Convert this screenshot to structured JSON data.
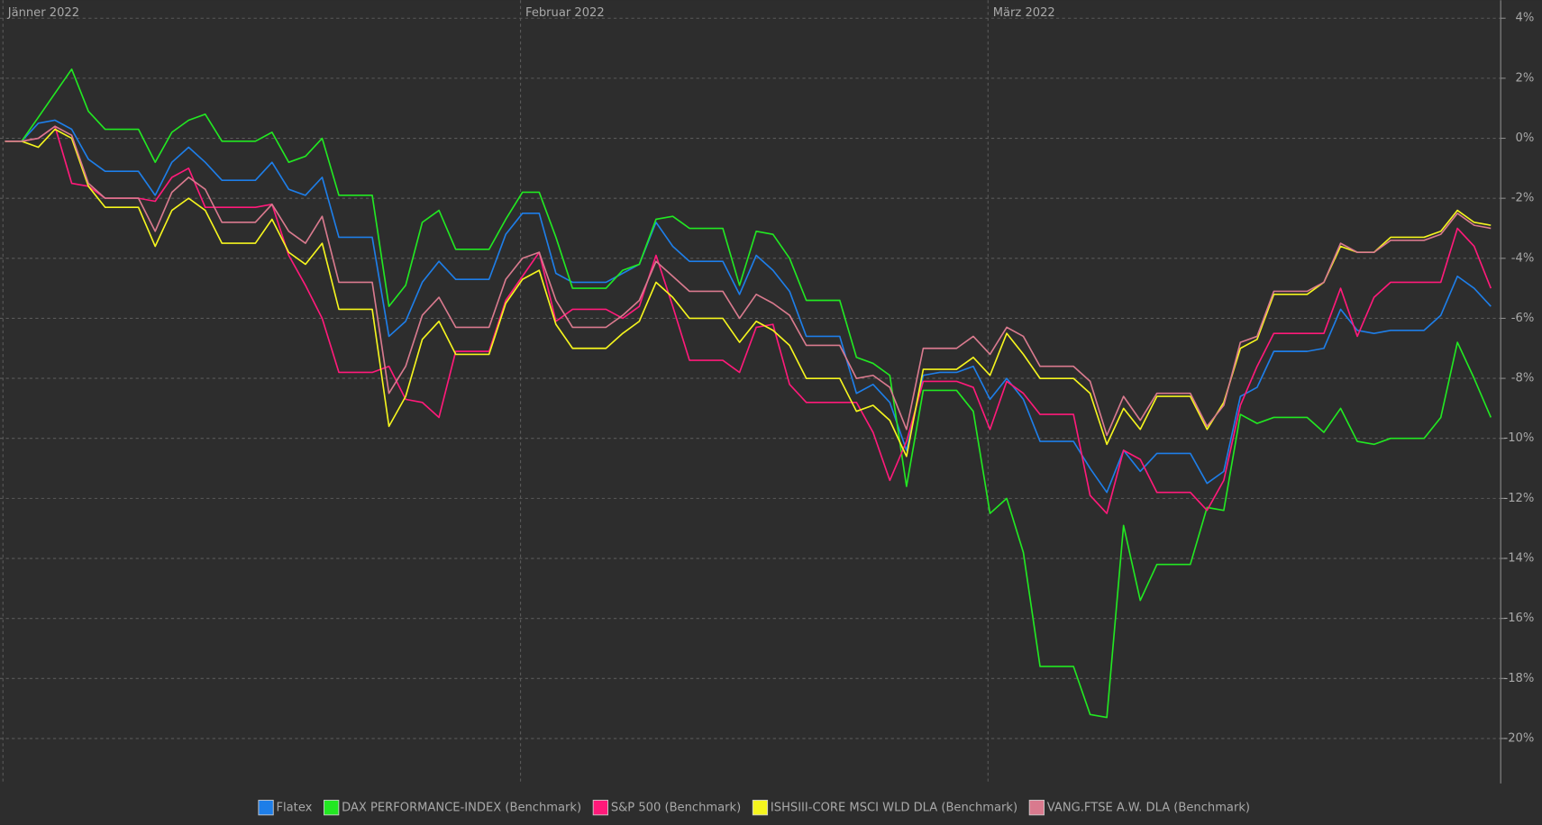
{
  "chart_data": {
    "type": "line",
    "categories": [
      "Jänner 2022",
      null,
      null,
      null,
      null,
      null,
      null,
      null,
      null,
      null,
      null,
      null,
      null,
      null,
      null,
      null,
      null,
      null,
      null,
      null,
      null,
      null,
      null,
      null,
      null,
      null,
      null,
      null,
      null,
      null,
      null,
      "Februar 2022",
      null,
      null,
      null,
      null,
      null,
      null,
      null,
      null,
      null,
      null,
      null,
      null,
      null,
      null,
      null,
      null,
      null,
      null,
      null,
      null,
      null,
      null,
      null,
      null,
      null,
      null,
      null,
      "März 2022",
      null,
      null,
      null,
      null,
      null,
      null,
      null,
      null,
      null,
      null,
      null,
      null,
      null,
      null,
      null,
      null,
      null,
      null,
      null,
      null,
      null,
      null,
      null,
      null,
      null,
      null,
      null,
      null,
      null,
      null
    ],
    "series": [
      {
        "name": "Flatex",
        "color": "#1e7ee8",
        "values": [
          -0.1,
          -0.1,
          0.5,
          0.6,
          0.3,
          -0.7,
          -1.1,
          -1.1,
          -1.1,
          -1.9,
          -0.8,
          -0.3,
          -0.8,
          -1.4,
          -1.4,
          -1.4,
          -0.8,
          -1.7,
          -1.9,
          -1.3,
          -3.3,
          -3.3,
          -3.3,
          -6.6,
          -6.1,
          -4.8,
          -4.1,
          -4.7,
          -4.7,
          -4.7,
          -3.2,
          -2.5,
          -2.5,
          -4.5,
          -4.8,
          -4.8,
          -4.8,
          -4.5,
          -4.2,
          -2.8,
          -3.6,
          -4.1,
          -4.1,
          -4.1,
          -5.2,
          -3.9,
          -4.4,
          -5.1,
          -6.6,
          -6.6,
          -6.6,
          -8.5,
          -8.2,
          -8.8,
          -10.4,
          -7.9,
          -7.8,
          -7.8,
          -7.6,
          -8.7,
          -8.0,
          -8.7,
          -10.1,
          -10.1,
          -10.1,
          -11.0,
          -11.8,
          -10.4,
          -11.1,
          -10.5,
          -10.5,
          -10.5,
          -11.5,
          -11.1,
          -8.6,
          -8.3,
          -7.1,
          -7.1,
          -7.1,
          -7.0,
          -5.7,
          -6.4,
          -6.5,
          -6.4,
          -6.4,
          -6.4,
          -5.9,
          -4.6,
          -5.0,
          -5.6
        ]
      },
      {
        "name": "DAX PERFORMANCE-INDEX (Benchmark)",
        "color": "#22e822",
        "values": [
          -0.1,
          -0.1,
          0.7,
          1.5,
          2.3,
          0.9,
          0.3,
          0.3,
          0.3,
          -0.8,
          0.2,
          0.6,
          0.8,
          -0.1,
          -0.1,
          -0.1,
          0.2,
          -0.8,
          -0.6,
          0.0,
          -1.9,
          -1.9,
          -1.9,
          -5.6,
          -4.9,
          -2.8,
          -2.4,
          -3.7,
          -3.7,
          -3.7,
          -2.7,
          -1.8,
          -1.8,
          -3.3,
          -5.0,
          -5.0,
          -5.0,
          -4.4,
          -4.2,
          -2.7,
          -2.6,
          -3.0,
          -3.0,
          -3.0,
          -4.9,
          -3.1,
          -3.2,
          -4.0,
          -5.4,
          -5.4,
          -5.4,
          -7.3,
          -7.5,
          -7.9,
          -11.6,
          -8.4,
          -8.4,
          -8.4,
          -9.1,
          -12.5,
          -12.0,
          -13.8,
          -17.6,
          -17.6,
          -17.6,
          -19.2,
          -19.3,
          -12.9,
          -15.4,
          -14.2,
          -14.2,
          -14.2,
          -12.3,
          -12.4,
          -9.2,
          -9.5,
          -9.3,
          -9.3,
          -9.3,
          -9.8,
          -9.0,
          -10.1,
          -10.2,
          -10.0,
          -10.0,
          -10.0,
          -9.3,
          -6.8,
          -8.0,
          -9.3
        ]
      },
      {
        "name": "S&P 500 (Benchmark)",
        "color": "#ff1a7a",
        "values": [
          -0.1,
          -0.1,
          0.0,
          0.4,
          -1.5,
          -1.6,
          -2.0,
          -2.0,
          -2.0,
          -2.1,
          -1.3,
          -1.0,
          -2.3,
          -2.3,
          -2.3,
          -2.3,
          -2.2,
          -3.9,
          -4.9,
          -6.0,
          -7.8,
          -7.8,
          -7.8,
          -7.6,
          -8.7,
          -8.8,
          -9.3,
          -7.1,
          -7.1,
          -7.1,
          -5.4,
          -4.6,
          -3.8,
          -6.1,
          -5.7,
          -5.7,
          -5.7,
          -6.0,
          -5.6,
          -3.9,
          -5.6,
          -7.4,
          -7.4,
          -7.4,
          -7.8,
          -6.3,
          -6.2,
          -8.2,
          -8.8,
          -8.8,
          -8.8,
          -8.8,
          -9.8,
          -11.4,
          -10.1,
          -8.1,
          -8.1,
          -8.1,
          -8.3,
          -9.7,
          -8.1,
          -8.5,
          -9.2,
          -9.2,
          -9.2,
          -11.9,
          -12.5,
          -10.4,
          -10.7,
          -11.8,
          -11.8,
          -11.8,
          -12.4,
          -11.4,
          -8.9,
          -7.6,
          -6.5,
          -6.5,
          -6.5,
          -6.5,
          -5.0,
          -6.6,
          -5.3,
          -4.8,
          -4.8,
          -4.8,
          -4.8,
          -3.0,
          -3.6,
          -5.0
        ]
      },
      {
        "name": "ISHSIII-CORE MSCI WLD DLA (Benchmark)",
        "color": "#f5f51e",
        "values": [
          -0.1,
          -0.1,
          -0.3,
          0.3,
          0.0,
          -1.6,
          -2.3,
          -2.3,
          -2.3,
          -3.6,
          -2.4,
          -2.0,
          -2.4,
          -3.5,
          -3.5,
          -3.5,
          -2.7,
          -3.8,
          -4.2,
          -3.5,
          -5.7,
          -5.7,
          -5.7,
          -9.6,
          -8.6,
          -6.7,
          -6.1,
          -7.2,
          -7.2,
          -7.2,
          -5.5,
          -4.7,
          -4.4,
          -6.2,
          -7.0,
          -7.0,
          -7.0,
          -6.5,
          -6.1,
          -4.8,
          -5.3,
          -6.0,
          -6.0,
          -6.0,
          -6.8,
          -6.1,
          -6.4,
          -6.9,
          -8.0,
          -8.0,
          -8.0,
          -9.1,
          -8.9,
          -9.4,
          -10.6,
          -7.7,
          -7.7,
          -7.7,
          -7.3,
          -7.9,
          -6.5,
          -7.2,
          -8.0,
          -8.0,
          -8.0,
          -8.5,
          -10.2,
          -9.0,
          -9.7,
          -8.6,
          -8.6,
          -8.6,
          -9.7,
          -8.8,
          -7.0,
          -6.7,
          -5.2,
          -5.2,
          -5.2,
          -4.8,
          -3.6,
          -3.8,
          -3.8,
          -3.3,
          -3.3,
          -3.3,
          -3.1,
          -2.4,
          -2.8,
          -2.9
        ]
      },
      {
        "name": "VANG.FTSE A.W. DLA (Benchmark)",
        "color": "#d97a8e",
        "values": [
          -0.1,
          -0.1,
          0.0,
          0.4,
          0.1,
          -1.5,
          -2.0,
          -2.0,
          -2.0,
          -3.1,
          -1.8,
          -1.3,
          -1.7,
          -2.8,
          -2.8,
          -2.8,
          -2.2,
          -3.1,
          -3.5,
          -2.6,
          -4.8,
          -4.8,
          -4.8,
          -8.5,
          -7.6,
          -5.9,
          -5.3,
          -6.3,
          -6.3,
          -6.3,
          -4.7,
          -4.0,
          -3.8,
          -5.4,
          -6.3,
          -6.3,
          -6.3,
          -5.9,
          -5.4,
          -4.1,
          -4.6,
          -5.1,
          -5.1,
          -5.1,
          -6.0,
          -5.2,
          -5.5,
          -5.9,
          -6.9,
          -6.9,
          -6.9,
          -8.0,
          -7.9,
          -8.3,
          -9.7,
          -7.0,
          -7.0,
          -7.0,
          -6.6,
          -7.2,
          -6.3,
          -6.6,
          -7.6,
          -7.6,
          -7.6,
          -8.1,
          -9.9,
          -8.6,
          -9.4,
          -8.5,
          -8.5,
          -8.5,
          -9.6,
          -8.9,
          -6.8,
          -6.6,
          -5.1,
          -5.1,
          -5.1,
          -4.8,
          -3.5,
          -3.8,
          -3.8,
          -3.4,
          -3.4,
          -3.4,
          -3.2,
          -2.5,
          -2.9,
          -3.0
        ]
      }
    ],
    "ylim": [
      -21.5,
      4.6
    ],
    "yticks": [
      {
        "value": 4,
        "label": "4%"
      },
      {
        "value": 2,
        "label": "2%"
      },
      {
        "value": 0,
        "label": "0%"
      },
      {
        "value": -2,
        "label": "-2%"
      },
      {
        "value": -4,
        "label": "-4%"
      },
      {
        "value": -6,
        "label": "-6%"
      },
      {
        "value": -8,
        "label": "-8%"
      },
      {
        "value": -10,
        "label": "-10%"
      },
      {
        "value": -12,
        "label": "-12%"
      },
      {
        "value": -14,
        "label": "-14%"
      },
      {
        "value": -16,
        "label": "-16%"
      },
      {
        "value": -18,
        "label": "-18%"
      },
      {
        "value": -20,
        "label": "-20%"
      }
    ],
    "grid": true,
    "legend": "bottom"
  }
}
